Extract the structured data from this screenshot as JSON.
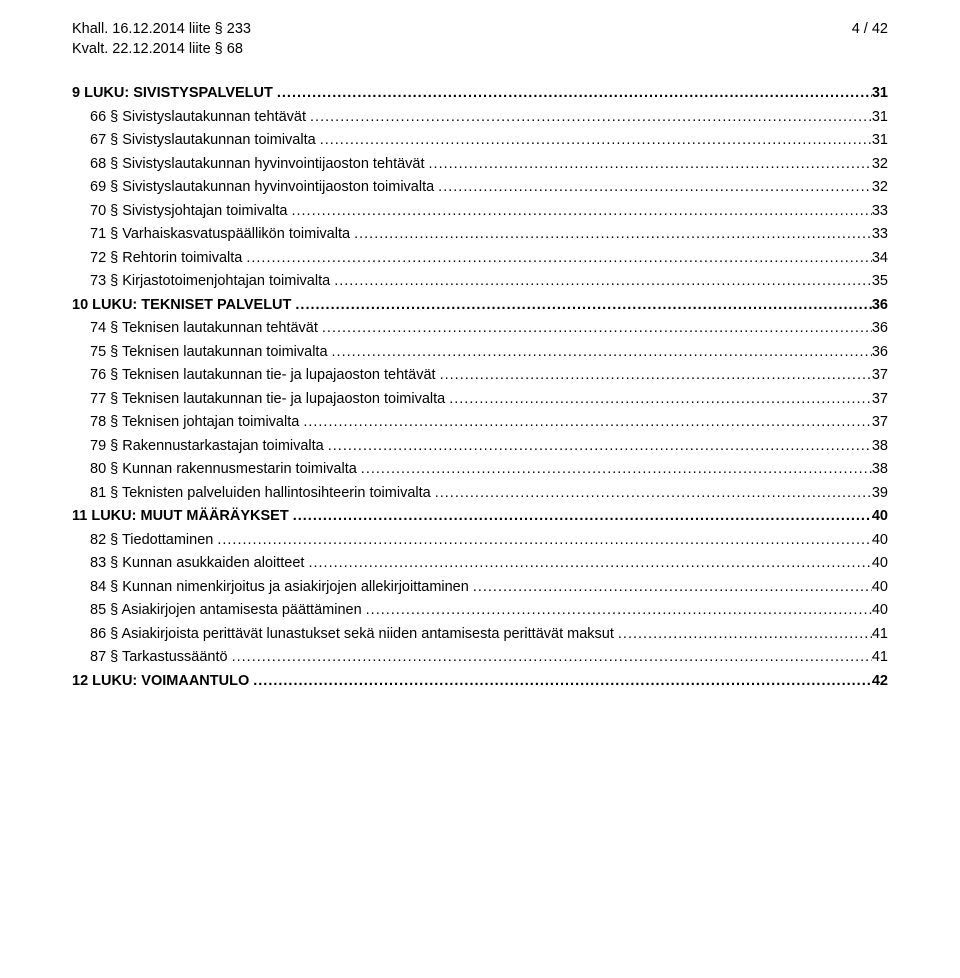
{
  "header": {
    "left_line1": "Khall. 16.12.2014 liite § 233",
    "left_line2": "Kvalt. 22.12.2014 liite § 68",
    "right_line1": "4 / 42"
  },
  "toc": [
    {
      "level": 0,
      "label": "9 LUKU: SIVISTYSPALVELUT",
      "page": "31"
    },
    {
      "level": 1,
      "label": "66 § Sivistyslautakunnan tehtävät",
      "page": "31"
    },
    {
      "level": 1,
      "label": "67 § Sivistyslautakunnan toimivalta",
      "page": "31"
    },
    {
      "level": 1,
      "label": "68 § Sivistyslautakunnan hyvinvointijaoston tehtävät",
      "page": "32"
    },
    {
      "level": 1,
      "label": "69 § Sivistyslautakunnan hyvinvointijaoston toimivalta",
      "page": "32"
    },
    {
      "level": 1,
      "label": "70 § Sivistysjohtajan toimivalta",
      "page": "33"
    },
    {
      "level": 1,
      "label": "71 § Varhaiskasvatuspäällikön toimivalta",
      "page": "33"
    },
    {
      "level": 1,
      "label": "72 § Rehtorin toimivalta",
      "page": "34"
    },
    {
      "level": 1,
      "label": "73 § Kirjastotoimenjohtajan toimivalta",
      "page": "35"
    },
    {
      "level": 0,
      "label": "10 LUKU: TEKNISET PALVELUT",
      "page": "36"
    },
    {
      "level": 1,
      "label": "74 § Teknisen lautakunnan tehtävät",
      "page": "36"
    },
    {
      "level": 1,
      "label": "75 § Teknisen lautakunnan toimivalta",
      "page": "36"
    },
    {
      "level": 1,
      "label": "76 § Teknisen lautakunnan tie- ja lupajaoston tehtävät",
      "page": "37"
    },
    {
      "level": 1,
      "label": "77 § Teknisen lautakunnan tie- ja lupajaoston toimivalta",
      "page": "37"
    },
    {
      "level": 1,
      "label": "78 § Teknisen johtajan toimivalta",
      "page": "37"
    },
    {
      "level": 1,
      "label": "79 § Rakennustarkastajan toimivalta",
      "page": "38"
    },
    {
      "level": 1,
      "label": "80 § Kunnan rakennusmestarin toimivalta",
      "page": "38"
    },
    {
      "level": 1,
      "label": "81 § Teknisten palveluiden hallintosihteerin toimivalta",
      "page": "39"
    },
    {
      "level": 0,
      "label": "11 LUKU: MUUT MÄÄRÄYKSET",
      "page": "40"
    },
    {
      "level": 1,
      "label": "82 § Tiedottaminen",
      "page": "40"
    },
    {
      "level": 1,
      "label": "83 § Kunnan asukkaiden aloitteet",
      "page": "40"
    },
    {
      "level": 1,
      "label": "84 § Kunnan nimenkirjoitus ja asiakirjojen allekirjoittaminen",
      "page": "40"
    },
    {
      "level": 1,
      "label": "85 § Asiakirjojen antamisesta päättäminen",
      "page": "40"
    },
    {
      "level": 1,
      "label": "86 § Asiakirjoista perittävät lunastukset sekä niiden antamisesta perittävät maksut",
      "page": "41"
    },
    {
      "level": 1,
      "label": "87 § Tarkastussääntö",
      "page": "41"
    },
    {
      "level": 0,
      "label": "12 LUKU: VOIMAANTULO",
      "page": "42"
    }
  ]
}
